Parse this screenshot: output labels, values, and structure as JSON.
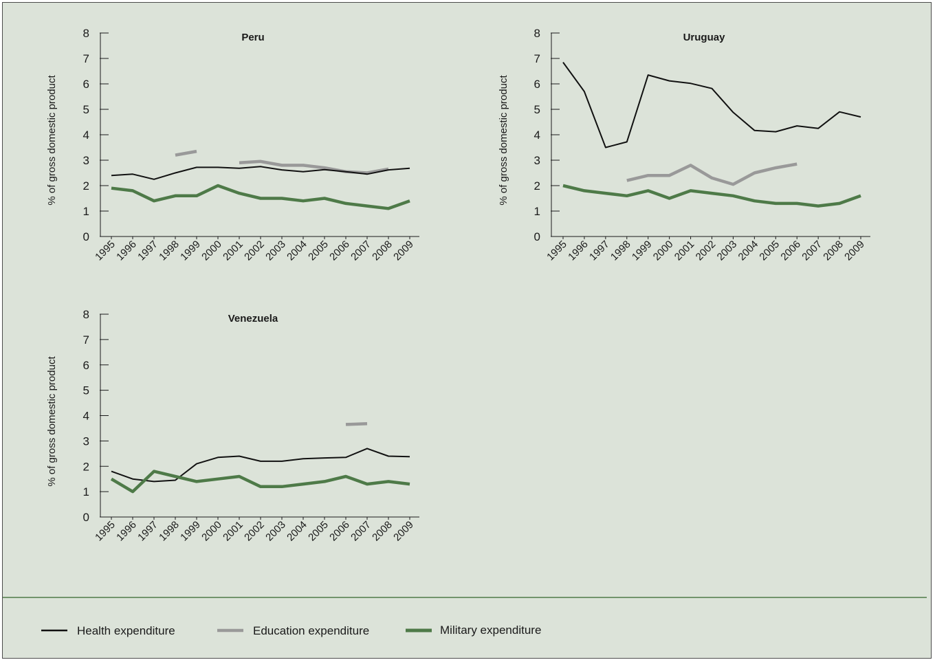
{
  "chart_data": [
    {
      "type": "line",
      "title": "Peru",
      "ylabel": "% of gross domestic product",
      "ylim": [
        0,
        8
      ],
      "yticks": [
        "0",
        "1",
        "2",
        "3",
        "4",
        "5",
        "6",
        "7",
        "8"
      ],
      "categories": [
        "1995",
        "1996",
        "1997",
        "1998",
        "1999",
        "2000",
        "2001",
        "2002",
        "2003",
        "2004",
        "2005",
        "2006",
        "2007",
        "2008",
        "2009"
      ],
      "series": [
        {
          "key": "health",
          "values": [
            2.4,
            2.45,
            2.25,
            2.5,
            2.72,
            2.72,
            2.68,
            2.75,
            2.62,
            2.55,
            2.63,
            2.55,
            2.45,
            2.62,
            2.68
          ]
        },
        {
          "key": "education",
          "values": [
            null,
            null,
            null,
            3.2,
            3.35,
            null,
            2.9,
            2.95,
            2.8,
            2.8,
            2.7,
            2.55,
            2.5,
            2.65,
            null
          ]
        },
        {
          "key": "military",
          "values": [
            1.9,
            1.8,
            1.4,
            1.6,
            1.6,
            2.0,
            1.7,
            1.5,
            1.5,
            1.4,
            1.5,
            1.3,
            1.2,
            1.1,
            1.4
          ]
        }
      ]
    },
    {
      "type": "line",
      "title": "Uruguay",
      "ylabel": "% of gross domestic product",
      "ylim": [
        0,
        8
      ],
      "yticks": [
        "0",
        "1",
        "2",
        "3",
        "4",
        "5",
        "6",
        "7",
        "8"
      ],
      "categories": [
        "1995",
        "1996",
        "1997",
        "1998",
        "1999",
        "2000",
        "2001",
        "2002",
        "2003",
        "2004",
        "2005",
        "2006",
        "2007",
        "2008",
        "2009"
      ],
      "series": [
        {
          "key": "health",
          "values": [
            6.85,
            5.7,
            3.5,
            3.72,
            6.35,
            6.12,
            6.02,
            5.82,
            4.88,
            4.17,
            4.12,
            4.35,
            4.25,
            4.9,
            4.7
          ]
        },
        {
          "key": "education",
          "values": [
            null,
            null,
            null,
            2.2,
            2.4,
            2.4,
            2.8,
            2.3,
            2.05,
            2.5,
            2.7,
            2.85,
            null,
            null,
            null
          ]
        },
        {
          "key": "military",
          "values": [
            2.0,
            1.8,
            1.7,
            1.6,
            1.8,
            1.5,
            1.8,
            1.7,
            1.6,
            1.4,
            1.3,
            1.3,
            1.2,
            1.3,
            1.6
          ]
        }
      ]
    },
    {
      "type": "line",
      "title": "Venezuela",
      "ylabel": "% of gross domestic product",
      "ylim": [
        0,
        8
      ],
      "yticks": [
        "0",
        "1",
        "2",
        "3",
        "4",
        "5",
        "6",
        "7",
        "8"
      ],
      "categories": [
        "1995",
        "1996",
        "1997",
        "1998",
        "1999",
        "2000",
        "2001",
        "2002",
        "2003",
        "2004",
        "2005",
        "2006",
        "2007",
        "2008",
        "2009"
      ],
      "series": [
        {
          "key": "health",
          "values": [
            1.8,
            1.5,
            1.4,
            1.45,
            2.1,
            2.35,
            2.4,
            2.2,
            2.2,
            2.3,
            2.33,
            2.35,
            2.7,
            2.4,
            2.38
          ]
        },
        {
          "key": "education",
          "values": [
            null,
            null,
            null,
            null,
            null,
            null,
            null,
            null,
            null,
            null,
            null,
            3.65,
            3.68,
            null,
            null
          ]
        },
        {
          "key": "military",
          "values": [
            1.5,
            1.0,
            1.8,
            1.6,
            1.4,
            1.5,
            1.6,
            1.2,
            1.2,
            1.3,
            1.4,
            1.6,
            1.3,
            1.4,
            1.3
          ]
        }
      ]
    }
  ],
  "legend": [
    {
      "key": "health",
      "label": "Health expenditure"
    },
    {
      "key": "education",
      "label": "Education expenditure"
    },
    {
      "key": "military",
      "label": "Military expenditure"
    }
  ],
  "colors": {
    "health": "#111111",
    "education": "#999999",
    "military": "#4e7a48",
    "background": "#dce3d9"
  }
}
